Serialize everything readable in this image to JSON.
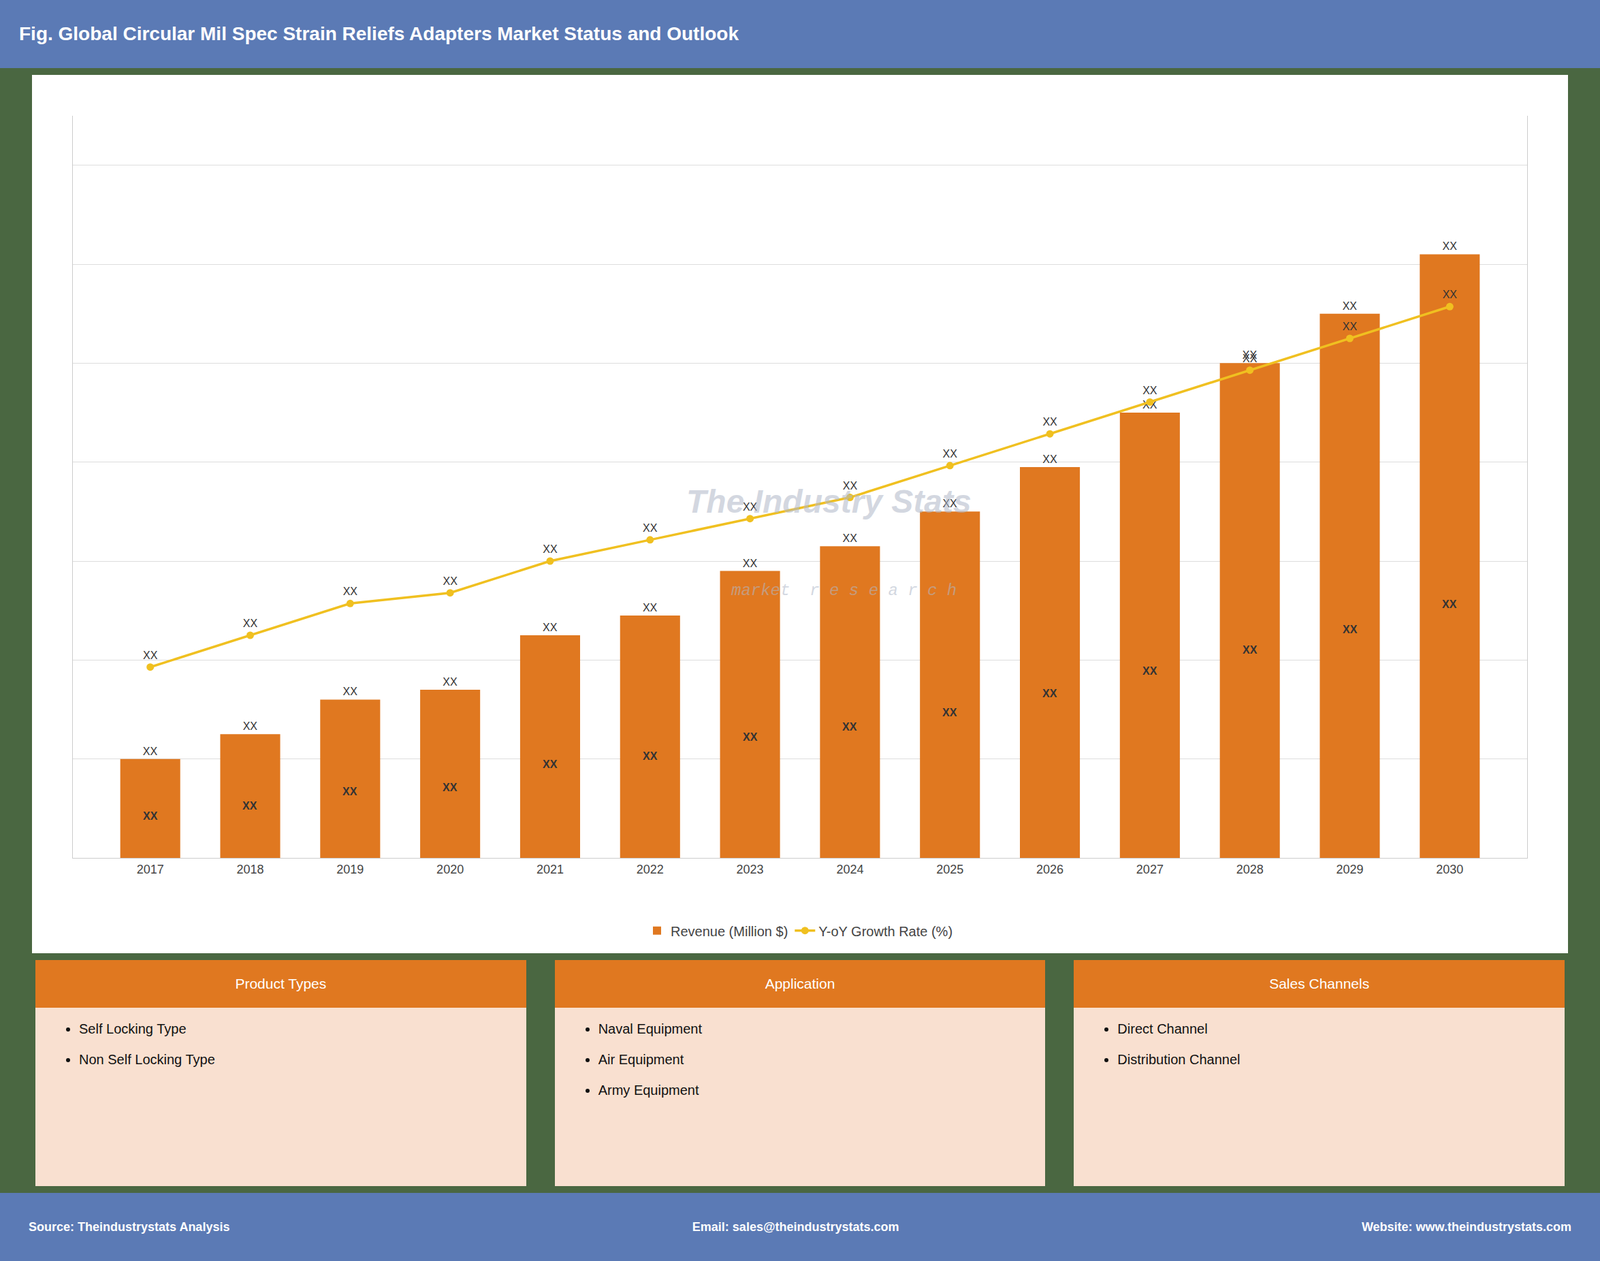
{
  "chart_data": {
    "type": "bar",
    "title": "Fig. Global Circular Mil Spec Strain Reliefs Adapters Market Status and Outlook",
    "categories": [
      "2017",
      "2018",
      "2019",
      "2020",
      "2021",
      "2022",
      "2023",
      "2024",
      "2025",
      "2026",
      "2027",
      "2028",
      "2029",
      "2030"
    ],
    "series": [
      {
        "name": "Revenue (Million $)",
        "type": "bar",
        "color": "#e07820",
        "values": [
          2,
          2.5,
          3.2,
          3.4,
          4.5,
          4.9,
          5.8,
          6.3,
          7.0,
          7.9,
          9.0,
          10.0,
          11.0,
          12.2
        ],
        "value_labels": [
          "XX",
          "XX",
          "XX",
          "XX",
          "XX",
          "XX",
          "XX",
          "XX",
          "XX",
          "XX",
          "XX",
          "XX",
          "XX",
          "XX"
        ],
        "inner_labels": [
          "XX",
          "XX",
          "XX",
          "XX",
          "XX",
          "XX",
          "XX",
          "XX",
          "XX",
          "XX",
          "XX",
          "XX",
          "XX",
          "XX"
        ]
      },
      {
        "name": "Y-oY Growth Rate (%)",
        "type": "line",
        "axis": "y2",
        "color": "#f0c020",
        "marker": "circle",
        "values": [
          1.8,
          2.1,
          2.4,
          2.5,
          2.8,
          3.0,
          3.2,
          3.4,
          3.7,
          4.0,
          4.3,
          4.6,
          4.9,
          5.2
        ],
        "value_labels": [
          "XX",
          "XX",
          "XX",
          "XX",
          "XX",
          "XX",
          "XX",
          "XX",
          "XX",
          "XX",
          "XX",
          "XX",
          "XX",
          "XX"
        ]
      }
    ],
    "ylim": [
      0,
      15
    ],
    "yticks": [
      0,
      2,
      4,
      6,
      8,
      10,
      12,
      14
    ],
    "y2lim": [
      0,
      7
    ],
    "grid": true,
    "tick_labels": "x",
    "legend": "bottom",
    "annotations": [
      "The Industry Stats",
      "market  r e s e a r c h"
    ],
    "info_boxes": [
      {
        "header": "Product Types",
        "items": [
          "Self Locking Type",
          "Non Self Locking Type"
        ]
      },
      {
        "header": "Application",
        "items": [
          "Naval Equipment",
          "Air Equipment",
          "Army Equipment"
        ]
      },
      {
        "header": "Sales Channels",
        "items": [
          "Direct Channel",
          "Distribution Channel"
        ]
      }
    ],
    "footer": [
      "Source: Theindustrystats Analysis",
      "Email: sales@theindustrystats.com",
      "Website: www.theindustrystats.com"
    ]
  }
}
